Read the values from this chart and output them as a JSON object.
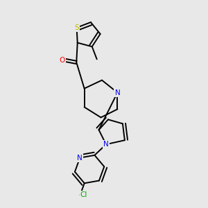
{
  "background_color": "#e8e8e8",
  "bond_color": "#000000",
  "S_color": "#bbbb00",
  "N_color": "#0000ee",
  "O_color": "#ff0000",
  "Cl_color": "#00aa00",
  "line_width": 1.4,
  "figsize": [
    3.0,
    3.0
  ],
  "dpi": 100,
  "xlim": [
    0,
    10
  ],
  "ylim": [
    0,
    10
  ]
}
